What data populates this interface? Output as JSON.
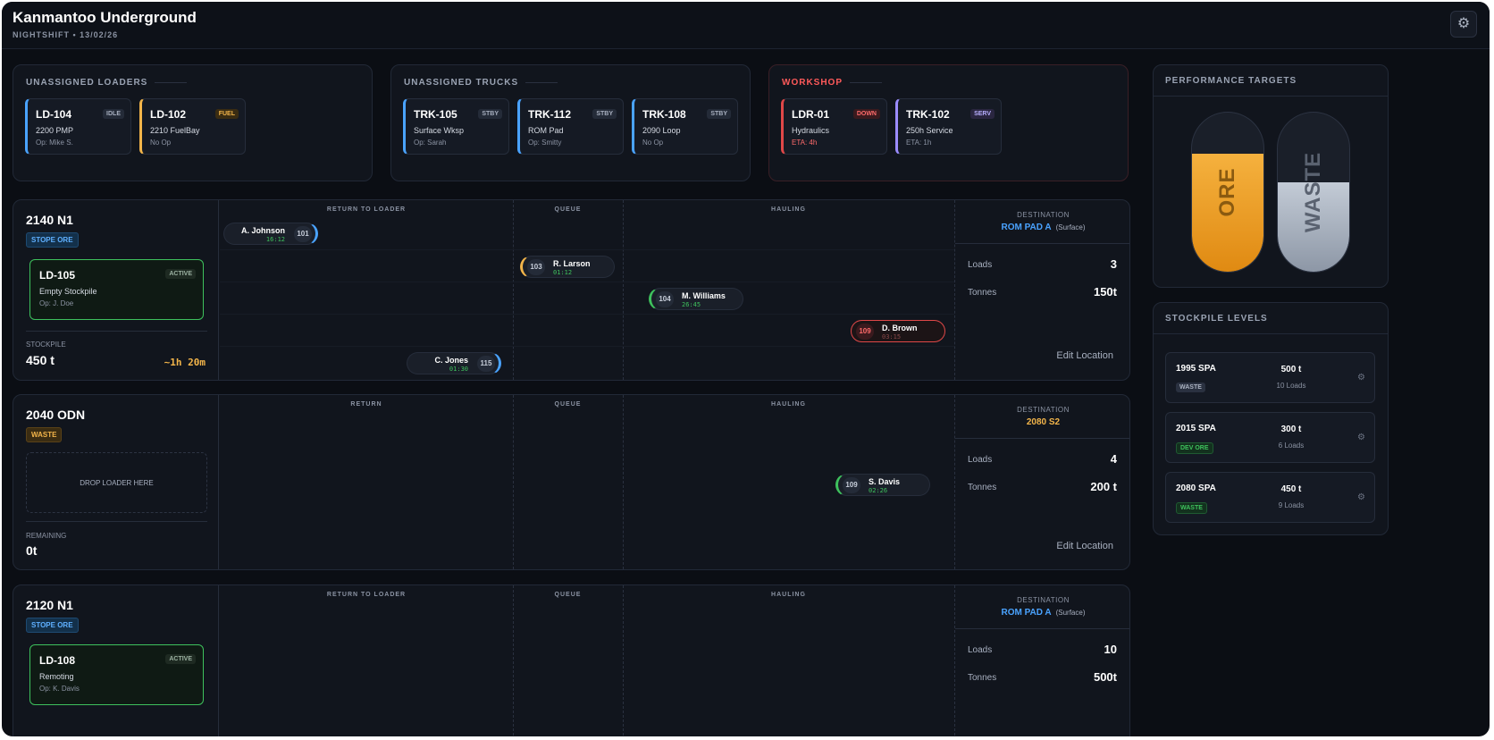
{
  "header": {
    "title": "Kanmantoo Underground",
    "subtitle": "NIGHTSHIFT • 13/02/26",
    "settings_icon": "gear-icon"
  },
  "unassigned_loaders": {
    "title": "UNASSIGNED LOADERS",
    "cards": [
      {
        "name": "LD-104",
        "tag": "IDLE",
        "line1": "2200 PMP",
        "line2": "Op: Mike S.",
        "color": "#4aa3ff"
      },
      {
        "name": "LD-102",
        "tag": "FUEL",
        "line1": "2210 FuelBay",
        "line2": "No Op",
        "color": "#f3b54a"
      }
    ]
  },
  "unassigned_trucks": {
    "title": "UNASSIGNED TRUCKS",
    "cards": [
      {
        "name": "TRK-105",
        "tag": "STBY",
        "line1": "Surface Wksp",
        "line2": "Op: Sarah",
        "color": "#4aa3ff"
      },
      {
        "name": "TRK-112",
        "tag": "STBY",
        "line1": "ROM Pad",
        "line2": "Op: Smitty",
        "color": "#4aa3ff"
      },
      {
        "name": "TRK-108",
        "tag": "STBY",
        "line1": "2090 Loop",
        "line2": "No Op",
        "color": "#4aa3ff"
      }
    ]
  },
  "workshop": {
    "title": "WORKSHOP",
    "cards": [
      {
        "name": "LDR-01",
        "tag": "DOWN",
        "line1": "Hydraulics",
        "line2": "ETA: 4h",
        "color": "#e04848"
      },
      {
        "name": "TRK-102",
        "tag": "SERV",
        "line1": "250h Service",
        "line2": "ETA: 1h",
        "color": "#9b8cff"
      }
    ]
  },
  "lanes": [
    {
      "name": "2140 N1",
      "chip": "STOPE ORE",
      "loader": {
        "name": "LD-105",
        "tag": "ACTIVE",
        "line1": "Empty Stockpile",
        "line2": "Op: J. Doe"
      },
      "stock_label": "STOCKPILE",
      "stock_value": "450 t",
      "eta": "~1h 20m",
      "cols": [
        "RETURN TO LOADER",
        "QUEUE",
        "HAULING"
      ],
      "dest_label": "DESTINATION",
      "dest": "ROM PAD A",
      "dest_sub": "(Surface)",
      "loads_label": "Loads",
      "loads": "3",
      "tonnes_label": "Tonnes",
      "tonnes": "150t",
      "edit": "Edit Location",
      "trucks": [
        {
          "num": "101",
          "name": "A. Johnson",
          "time": "16:12"
        },
        {
          "num": "103",
          "name": "R. Larson",
          "time": "01:12"
        },
        {
          "num": "104",
          "name": "M. Williams",
          "time": "26:45"
        },
        {
          "num": "109",
          "name": "D. Brown",
          "time": "03:15"
        },
        {
          "num": "115",
          "name": "C. Jones",
          "time": "01:30"
        }
      ]
    },
    {
      "name": "2040 ODN",
      "chip": "WASTE",
      "drop": "DROP LOADER HERE",
      "stock_label": "REMAINING",
      "stock_value": "0t",
      "cols": [
        "RETURN",
        "QUEUE",
        "HAULING"
      ],
      "dest_label": "DESTINATION",
      "dest": "2080 S2",
      "loads_label": "Loads",
      "loads": "4",
      "tonnes_label": "Tonnes",
      "tonnes": "200 t",
      "edit": "Edit Location",
      "trucks": [
        {
          "num": "109",
          "name": "S. Davis",
          "time": "02:26"
        }
      ]
    },
    {
      "name": "2120 N1",
      "chip": "STOPE ORE",
      "loader": {
        "name": "LD-108",
        "tag": "ACTIVE",
        "line1": "Remoting",
        "line2": "Op: K. Davis"
      },
      "cols": [
        "RETURN TO LOADER",
        "QUEUE",
        "HAULING"
      ],
      "dest_label": "DESTINATION",
      "dest": "ROM PAD A",
      "dest_sub": "(Surface)",
      "loads_label": "Loads",
      "loads": "10",
      "tonnes_label": "Tonnes",
      "tonnes": "500t"
    }
  ],
  "performance": {
    "title": "PERFORMANCE TARGETS",
    "ore_label": "ORE",
    "ore_fill": 0.74,
    "waste_label": "WASTE",
    "waste_fill": 0.56
  },
  "stockpiles": {
    "title": "STOCKPILE LEVELS",
    "items": [
      {
        "name": "1995 SPA",
        "chip": "WASTE",
        "tonnes": "500 t",
        "loads": "10 Loads"
      },
      {
        "name": "2015 SPA",
        "chip": "DEV ORE",
        "tonnes": "300 t",
        "loads": "6 Loads"
      },
      {
        "name": "2080 SPA",
        "chip": "WASTE",
        "tonnes": "450 t",
        "loads": "9 Loads"
      }
    ]
  },
  "colors": {
    "ore": "#f0a12a",
    "waste": "#aeb8c6",
    "active": "#3ec15d",
    "alert": "#e04848"
  }
}
